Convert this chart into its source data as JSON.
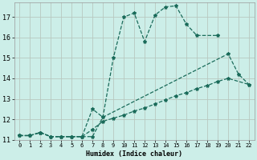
{
  "xlabel": "Humidex (Indice chaleur)",
  "bg_color": "#cceee8",
  "grid_color": "#b8c8c0",
  "line_color": "#1a6b5a",
  "xlim": [
    -0.5,
    22.5
  ],
  "ylim": [
    11.0,
    17.7
  ],
  "yticks": [
    11,
    12,
    13,
    14,
    15,
    16,
    17
  ],
  "xticks": [
    0,
    1,
    2,
    3,
    4,
    5,
    6,
    7,
    8,
    9,
    10,
    11,
    12,
    13,
    14,
    15,
    16,
    17,
    18,
    19,
    20,
    21,
    22
  ],
  "lines": [
    {
      "x": [
        0,
        1,
        2,
        3,
        4,
        5,
        6,
        7,
        8,
        9,
        10,
        11,
        12,
        13,
        14,
        15,
        16,
        17,
        19
      ],
      "y": [
        11.2,
        11.2,
        11.35,
        11.15,
        11.15,
        11.15,
        11.15,
        11.15,
        12.1,
        15.0,
        17.0,
        17.2,
        15.8,
        17.1,
        17.5,
        17.55,
        16.65,
        16.1,
        16.1
      ]
    },
    {
      "x": [
        0,
        1,
        2,
        3,
        4,
        5,
        6,
        7,
        8,
        20,
        21,
        22
      ],
      "y": [
        11.2,
        11.2,
        11.35,
        11.15,
        11.15,
        11.15,
        11.15,
        12.5,
        12.1,
        15.2,
        14.2,
        13.7
      ]
    },
    {
      "x": [
        0,
        1,
        2,
        3,
        4,
        5,
        6,
        7,
        8,
        9,
        10,
        11,
        12,
        13,
        14,
        15,
        16,
        17,
        18,
        19,
        20,
        22
      ],
      "y": [
        11.2,
        11.2,
        11.35,
        11.15,
        11.15,
        11.15,
        11.15,
        11.5,
        11.9,
        12.05,
        12.2,
        12.4,
        12.55,
        12.75,
        12.95,
        13.15,
        13.3,
        13.5,
        13.65,
        13.85,
        14.0,
        13.7
      ]
    }
  ]
}
